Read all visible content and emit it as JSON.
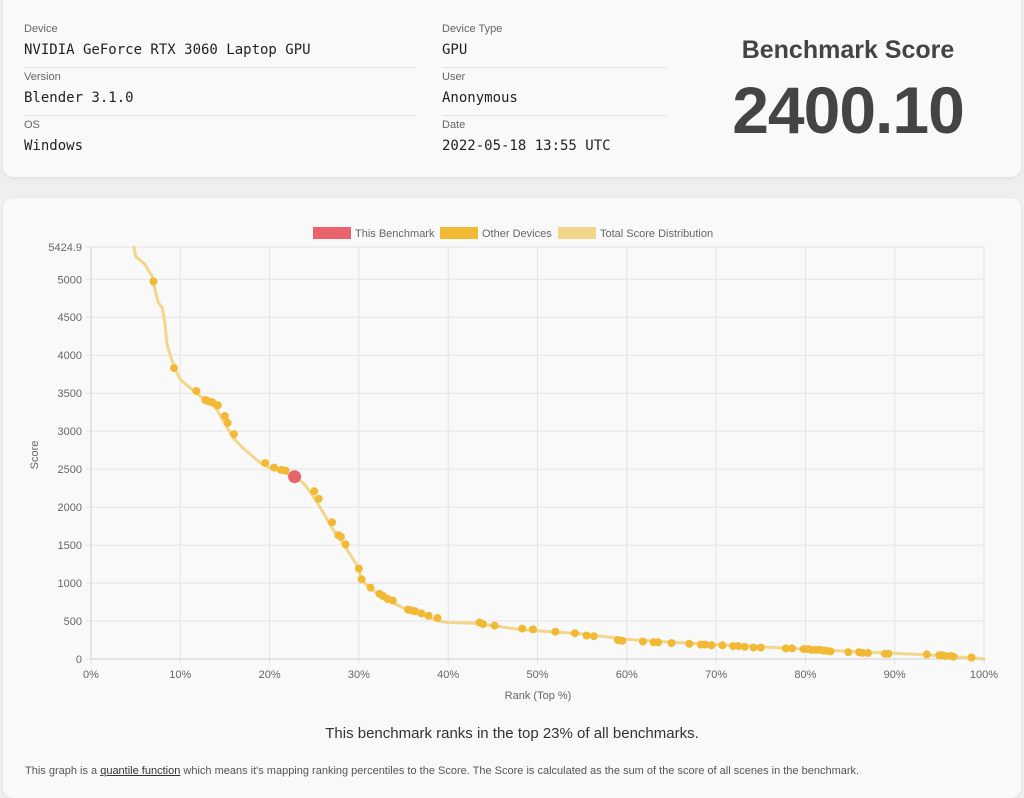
{
  "info": {
    "device_label": "Device",
    "device_value": "NVIDIA GeForce RTX 3060 Laptop GPU",
    "version_label": "Version",
    "version_value": "Blender 3.1.0",
    "os_label": "OS",
    "os_value": "Windows",
    "device_type_label": "Device Type",
    "device_type_value": "GPU",
    "user_label": "User",
    "user_value": "Anonymous",
    "date_label": "Date",
    "date_value": "2022-05-18 13:55 UTC"
  },
  "score": {
    "title": "Benchmark Score",
    "value": "2400.10"
  },
  "rank_text": "This benchmark ranks in the top 23% of all benchmarks.",
  "footnote": {
    "before": "This graph is a ",
    "link": "quantile function",
    "after": " which means it's mapping ranking percentiles to the Score. The Score is calculated as the sum of the score of all scenes in the benchmark."
  },
  "colors": {
    "this_benchmark": "#e8636b",
    "other_devices": "#f2b934",
    "distribution": "#f3d68a",
    "grid": "#e4e4e4",
    "axis_text": "#666666"
  },
  "chart_data": {
    "type": "scatter",
    "xlabel": "Rank (Top %)",
    "ylabel": "Score",
    "xlim": [
      0,
      100
    ],
    "ylim": [
      0,
      5424.9
    ],
    "x_ticks": [
      0,
      10,
      20,
      30,
      40,
      50,
      60,
      70,
      80,
      90,
      100
    ],
    "x_tick_labels": [
      "0%",
      "10%",
      "20%",
      "30%",
      "40%",
      "50%",
      "60%",
      "70%",
      "80%",
      "90%",
      "100%"
    ],
    "y_ticks": [
      0,
      500,
      1000,
      1500,
      2000,
      2500,
      3000,
      3500,
      4000,
      4500,
      5000,
      5424.9
    ],
    "y_tick_labels": [
      "0",
      "500",
      "1000",
      "1500",
      "2000",
      "2500",
      "3000",
      "3500",
      "4000",
      "4500",
      "5000",
      "5424.9"
    ],
    "grid": true,
    "legend_position": "top-center",
    "legend": [
      {
        "name": "This Benchmark",
        "color_key": "this_benchmark"
      },
      {
        "name": "Other Devices",
        "color_key": "other_devices"
      },
      {
        "name": "Total Score Distribution",
        "color_key": "distribution"
      }
    ],
    "distribution": {
      "name": "Total Score Distribution",
      "x": [
        4.8,
        5.0,
        6.0,
        6.8,
        7.0,
        7.5,
        8.0,
        8.3,
        8.5,
        9.0,
        9.5,
        10.0,
        11.0,
        12.0,
        13.0,
        14.0,
        15.0,
        16.0,
        17.0,
        18.0,
        19.0,
        20.0,
        21.0,
        22.0,
        23.0,
        24.0,
        25.0,
        26.0,
        27.0,
        28.0,
        29.0,
        30.0,
        30.2,
        31.0,
        32.0,
        33.0,
        34.0,
        35.0,
        36.0,
        37.0,
        38.0,
        39.0,
        40.0,
        43.0,
        45.0,
        48.0,
        50.0,
        55.0,
        60.0,
        65.0,
        70.0,
        75.0,
        80.0,
        85.0,
        90.0,
        95.0,
        98.0,
        100.0
      ],
      "y": [
        5420,
        5300,
        5200,
        5050,
        4950,
        4700,
        4620,
        4400,
        4150,
        3950,
        3800,
        3680,
        3580,
        3480,
        3400,
        3300,
        3100,
        2900,
        2780,
        2680,
        2580,
        2520,
        2480,
        2440,
        2390,
        2290,
        2120,
        1930,
        1720,
        1560,
        1380,
        1200,
        1050,
        960,
        870,
        800,
        730,
        670,
        630,
        590,
        540,
        500,
        480,
        470,
        440,
        390,
        370,
        330,
        260,
        220,
        190,
        160,
        130,
        100,
        75,
        45,
        20,
        0
      ]
    },
    "other_devices": {
      "name": "Other Devices",
      "x": [
        7.0,
        9.3,
        11.8,
        12.8,
        13.2,
        13.6,
        14.2,
        15.0,
        15.3,
        16.0,
        19.5,
        20.5,
        21.3,
        21.8,
        25.0,
        25.5,
        27.0,
        27.7,
        28.0,
        28.5,
        30.0,
        30.3,
        31.3,
        32.3,
        32.7,
        33.2,
        33.8,
        35.5,
        35.9,
        36.3,
        37.0,
        37.8,
        38.8,
        43.5,
        43.9,
        45.2,
        48.3,
        49.5,
        52.0,
        54.2,
        55.5,
        56.3,
        59.0,
        59.5,
        61.8,
        63.0,
        63.5,
        65.0,
        67.0,
        68.3,
        68.8,
        69.5,
        70.7,
        71.9,
        72.5,
        73.2,
        74.2,
        75.0,
        77.8,
        78.5,
        79.8,
        80.3,
        80.7,
        81.2,
        81.6,
        82.0,
        82.3,
        82.8,
        84.8,
        86.0,
        86.4,
        87.0,
        88.9,
        89.3,
        93.6,
        95.0,
        95.3,
        95.7,
        96.3,
        96.6,
        98.6
      ],
      "y": [
        4970,
        3830,
        3530,
        3410,
        3390,
        3380,
        3340,
        3200,
        3110,
        2960,
        2580,
        2520,
        2490,
        2480,
        2210,
        2110,
        1800,
        1630,
        1610,
        1510,
        1190,
        1050,
        940,
        860,
        830,
        790,
        770,
        650,
        640,
        630,
        600,
        570,
        540,
        480,
        460,
        440,
        400,
        390,
        360,
        340,
        310,
        300,
        250,
        240,
        230,
        220,
        220,
        210,
        200,
        190,
        190,
        180,
        180,
        170,
        170,
        160,
        150,
        150,
        140,
        140,
        130,
        130,
        120,
        120,
        120,
        110,
        110,
        100,
        90,
        90,
        80,
        80,
        70,
        70,
        60,
        50,
        50,
        40,
        40,
        30,
        20
      ]
    },
    "this_benchmark": {
      "name": "This Benchmark",
      "x": 22.8,
      "y": 2400.1
    }
  }
}
